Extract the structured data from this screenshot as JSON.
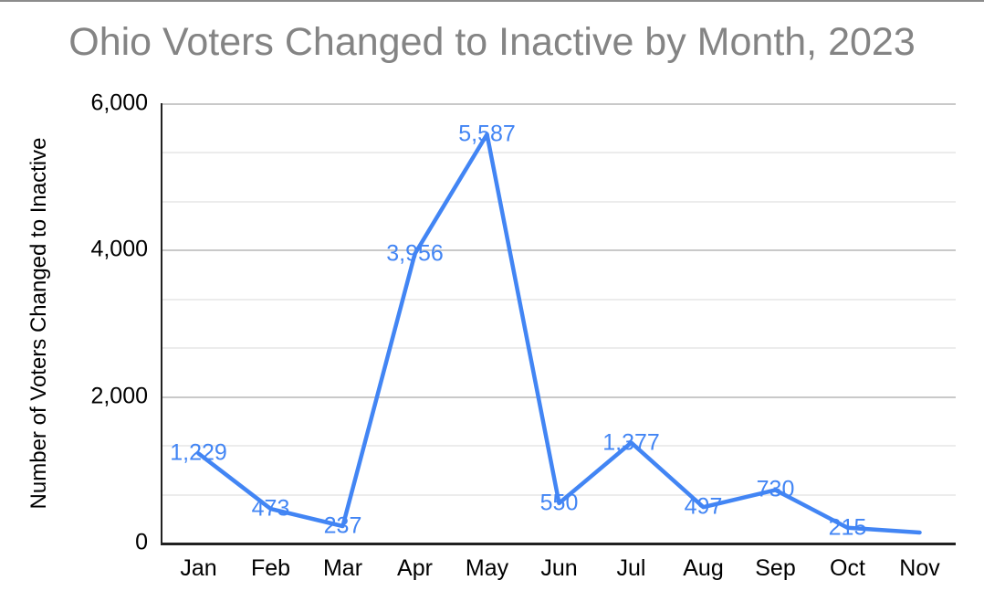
{
  "page": {
    "background": "#ffffff",
    "top_rule_color": "#8c8c8c"
  },
  "chart": {
    "title": "Ohio Voters Changed to Inactive by Month, 2023",
    "title_color": "#848484",
    "y_axis_title": "Number of Voters Changed to Inactive",
    "axis_line_color": "#212121",
    "major_gridline_color": "#c9c9c9",
    "minor_gridline_color": "#ececec",
    "series_color": "#4285f4"
  },
  "chart_data": {
    "type": "line",
    "title": "Ohio Voters Changed to Inactive by Month, 2023",
    "xlabel": "",
    "ylabel": "Number of Voters Changed to Inactive",
    "categories": [
      "Jan",
      "Feb",
      "Mar",
      "Apr",
      "May",
      "Jun",
      "Jul",
      "Aug",
      "Sep",
      "Oct",
      "Nov"
    ],
    "values": [
      1229,
      473,
      237,
      3956,
      5587,
      550,
      1377,
      497,
      730,
      215,
      150
    ],
    "data_labels": [
      "1,229",
      "473",
      "237",
      "3,956",
      "5,587",
      "550",
      "1,377",
      "497",
      "730",
      "215",
      ""
    ],
    "line_color": "#4285f4",
    "ylim": [
      0,
      6000
    ],
    "y_ticks": [
      6000,
      4000,
      2000,
      0
    ],
    "y_tick_labels": [
      "6,000",
      "4,000",
      "2,000",
      "0"
    ],
    "minor_gridlines_between_majors": 2,
    "grid": true,
    "legend": "none"
  }
}
